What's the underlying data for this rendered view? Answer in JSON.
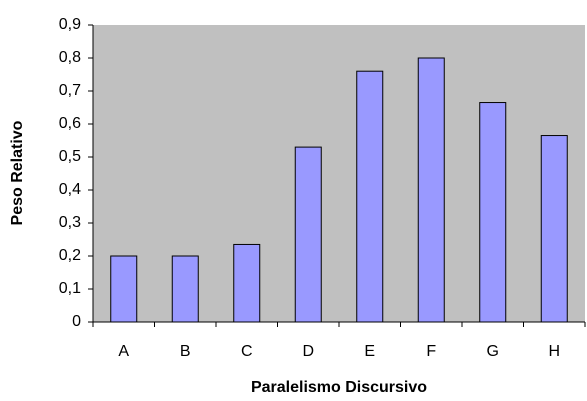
{
  "chart_data": {
    "type": "bar",
    "x_label": "Paralelismo Discursivo",
    "y_label": "Peso Relativo",
    "categories": [
      "A",
      "B",
      "C",
      "D",
      "E",
      "F",
      "G",
      "H"
    ],
    "values": [
      0.2,
      0.2,
      0.235,
      0.53,
      0.76,
      0.8,
      0.665,
      0.565
    ],
    "color": "#9999ff",
    "plot_background": "#c0c0c0",
    "ylim": [
      0,
      0.9
    ],
    "yticks": [
      0,
      {
        "value": 0.1,
        "label": "0,1"
      },
      {
        "value": 0.2,
        "label": "0,2"
      },
      {
        "value": 0.3,
        "label": "0,3"
      },
      {
        "value": 0.4,
        "label": "0,4"
      },
      {
        "value": 0.5,
        "label": "0,5"
      },
      {
        "value": 0.6,
        "label": "0,6"
      },
      {
        "value": 0.7,
        "label": "0,7"
      },
      {
        "value": 0.8,
        "label": "0,8"
      },
      {
        "value": 0.9,
        "label": "0,9"
      }
    ],
    "grid": false
  }
}
